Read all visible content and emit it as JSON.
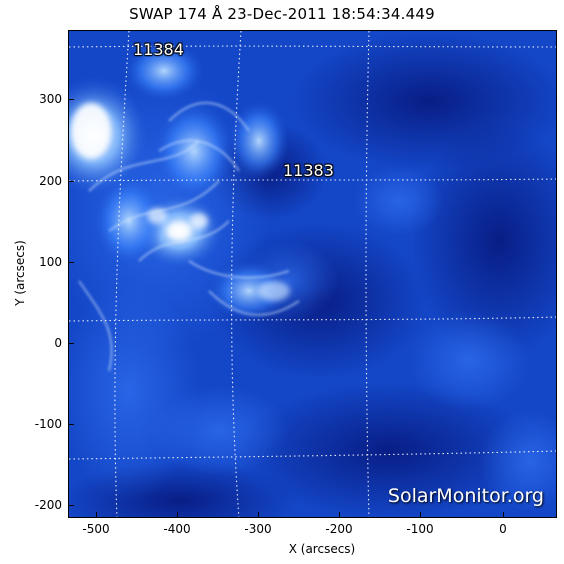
{
  "title": "SWAP 174 Å 23-Dec-2011 18:54:34.449",
  "regions": [
    {
      "label": "11384"
    },
    {
      "label": "11383"
    }
  ],
  "watermark": "SolarMonitor.org",
  "x_axis": {
    "label": "X (arcsecs)",
    "ticks": [
      "-500",
      "-400",
      "-300",
      "-200",
      "-100",
      "0"
    ]
  },
  "y_axis": {
    "label": "Y (arcsecs)",
    "ticks": [
      "300",
      "200",
      "100",
      "0",
      "-100",
      "-200"
    ]
  },
  "colors": {
    "background": "#0a2a9a",
    "bright": "#e8f4ff",
    "grid": "#ffffff"
  }
}
